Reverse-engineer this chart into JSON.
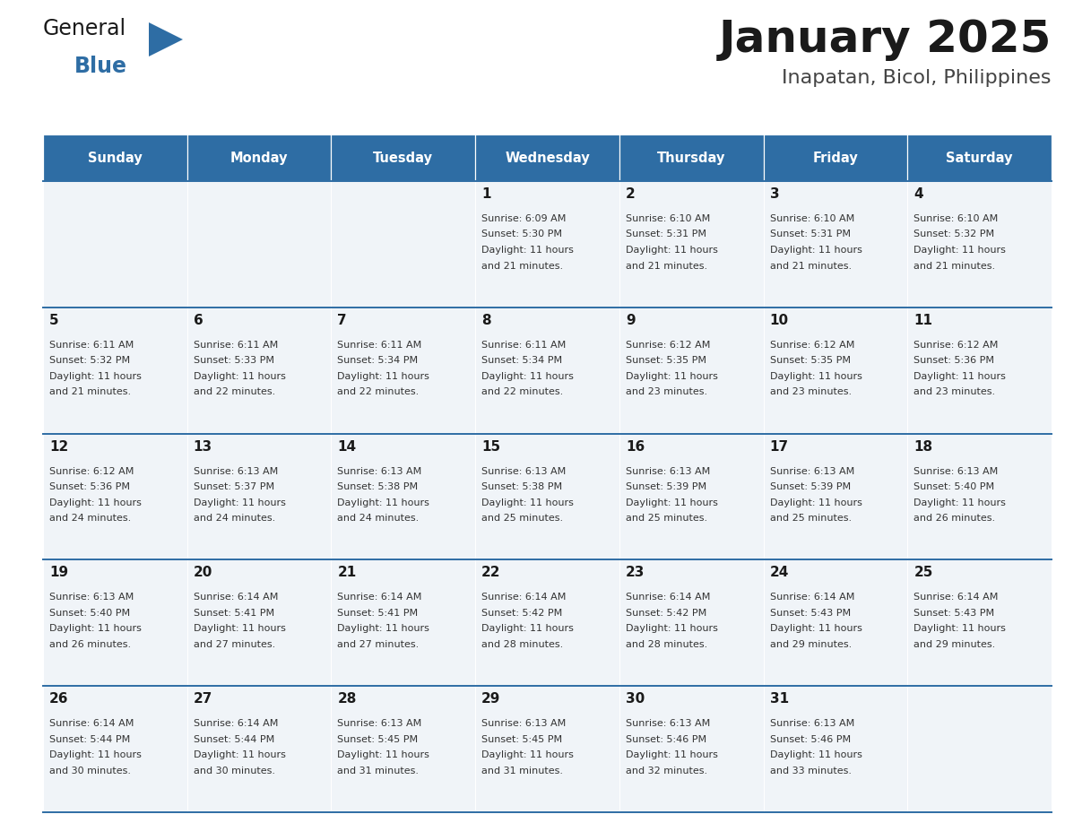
{
  "title": "January 2025",
  "subtitle": "Inapatan, Bicol, Philippines",
  "header_bg": "#2E6DA4",
  "header_text_color": "#FFFFFF",
  "cell_bg": "#F0F4F8",
  "border_color": "#2E6DA4",
  "text_color": "#333333",
  "days_of_week": [
    "Sunday",
    "Monday",
    "Tuesday",
    "Wednesday",
    "Thursday",
    "Friday",
    "Saturday"
  ],
  "calendar_data": [
    [
      {
        "day": "",
        "sunrise": "",
        "sunset": "",
        "daylight": ""
      },
      {
        "day": "",
        "sunrise": "",
        "sunset": "",
        "daylight": ""
      },
      {
        "day": "",
        "sunrise": "",
        "sunset": "",
        "daylight": ""
      },
      {
        "day": "1",
        "sunrise": "6:09 AM",
        "sunset": "5:30 PM",
        "daylight": "11 hours and 21 minutes."
      },
      {
        "day": "2",
        "sunrise": "6:10 AM",
        "sunset": "5:31 PM",
        "daylight": "11 hours and 21 minutes."
      },
      {
        "day": "3",
        "sunrise": "6:10 AM",
        "sunset": "5:31 PM",
        "daylight": "11 hours and 21 minutes."
      },
      {
        "day": "4",
        "sunrise": "6:10 AM",
        "sunset": "5:32 PM",
        "daylight": "11 hours and 21 minutes."
      }
    ],
    [
      {
        "day": "5",
        "sunrise": "6:11 AM",
        "sunset": "5:32 PM",
        "daylight": "11 hours and 21 minutes."
      },
      {
        "day": "6",
        "sunrise": "6:11 AM",
        "sunset": "5:33 PM",
        "daylight": "11 hours and 22 minutes."
      },
      {
        "day": "7",
        "sunrise": "6:11 AM",
        "sunset": "5:34 PM",
        "daylight": "11 hours and 22 minutes."
      },
      {
        "day": "8",
        "sunrise": "6:11 AM",
        "sunset": "5:34 PM",
        "daylight": "11 hours and 22 minutes."
      },
      {
        "day": "9",
        "sunrise": "6:12 AM",
        "sunset": "5:35 PM",
        "daylight": "11 hours and 23 minutes."
      },
      {
        "day": "10",
        "sunrise": "6:12 AM",
        "sunset": "5:35 PM",
        "daylight": "11 hours and 23 minutes."
      },
      {
        "day": "11",
        "sunrise": "6:12 AM",
        "sunset": "5:36 PM",
        "daylight": "11 hours and 23 minutes."
      }
    ],
    [
      {
        "day": "12",
        "sunrise": "6:12 AM",
        "sunset": "5:36 PM",
        "daylight": "11 hours and 24 minutes."
      },
      {
        "day": "13",
        "sunrise": "6:13 AM",
        "sunset": "5:37 PM",
        "daylight": "11 hours and 24 minutes."
      },
      {
        "day": "14",
        "sunrise": "6:13 AM",
        "sunset": "5:38 PM",
        "daylight": "11 hours and 24 minutes."
      },
      {
        "day": "15",
        "sunrise": "6:13 AM",
        "sunset": "5:38 PM",
        "daylight": "11 hours and 25 minutes."
      },
      {
        "day": "16",
        "sunrise": "6:13 AM",
        "sunset": "5:39 PM",
        "daylight": "11 hours and 25 minutes."
      },
      {
        "day": "17",
        "sunrise": "6:13 AM",
        "sunset": "5:39 PM",
        "daylight": "11 hours and 25 minutes."
      },
      {
        "day": "18",
        "sunrise": "6:13 AM",
        "sunset": "5:40 PM",
        "daylight": "11 hours and 26 minutes."
      }
    ],
    [
      {
        "day": "19",
        "sunrise": "6:13 AM",
        "sunset": "5:40 PM",
        "daylight": "11 hours and 26 minutes."
      },
      {
        "day": "20",
        "sunrise": "6:14 AM",
        "sunset": "5:41 PM",
        "daylight": "11 hours and 27 minutes."
      },
      {
        "day": "21",
        "sunrise": "6:14 AM",
        "sunset": "5:41 PM",
        "daylight": "11 hours and 27 minutes."
      },
      {
        "day": "22",
        "sunrise": "6:14 AM",
        "sunset": "5:42 PM",
        "daylight": "11 hours and 28 minutes."
      },
      {
        "day": "23",
        "sunrise": "6:14 AM",
        "sunset": "5:42 PM",
        "daylight": "11 hours and 28 minutes."
      },
      {
        "day": "24",
        "sunrise": "6:14 AM",
        "sunset": "5:43 PM",
        "daylight": "11 hours and 29 minutes."
      },
      {
        "day": "25",
        "sunrise": "6:14 AM",
        "sunset": "5:43 PM",
        "daylight": "11 hours and 29 minutes."
      }
    ],
    [
      {
        "day": "26",
        "sunrise": "6:14 AM",
        "sunset": "5:44 PM",
        "daylight": "11 hours and 30 minutes."
      },
      {
        "day": "27",
        "sunrise": "6:14 AM",
        "sunset": "5:44 PM",
        "daylight": "11 hours and 30 minutes."
      },
      {
        "day": "28",
        "sunrise": "6:13 AM",
        "sunset": "5:45 PM",
        "daylight": "11 hours and 31 minutes."
      },
      {
        "day": "29",
        "sunrise": "6:13 AM",
        "sunset": "5:45 PM",
        "daylight": "11 hours and 31 minutes."
      },
      {
        "day": "30",
        "sunrise": "6:13 AM",
        "sunset": "5:46 PM",
        "daylight": "11 hours and 32 minutes."
      },
      {
        "day": "31",
        "sunrise": "6:13 AM",
        "sunset": "5:46 PM",
        "daylight": "11 hours and 33 minutes."
      },
      {
        "day": "",
        "sunrise": "",
        "sunset": "",
        "daylight": ""
      }
    ]
  ],
  "logo_color_general": "#1a1a1a",
  "logo_color_blue": "#2E6DA4",
  "fig_width": 11.88,
  "fig_height": 9.18,
  "dpi": 100
}
